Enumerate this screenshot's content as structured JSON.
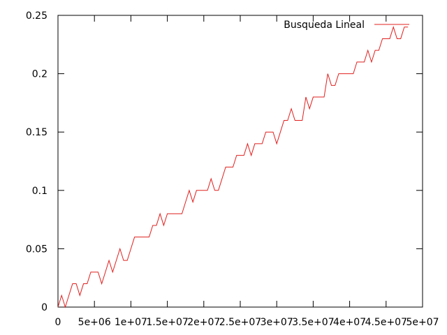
{
  "chart_data": {
    "type": "line",
    "title": "",
    "xlabel": "",
    "ylabel": "",
    "xlim": [
      0,
      50000000
    ],
    "ylim": [
      0,
      0.25
    ],
    "x_ticks": [
      {
        "value": 0,
        "label": "0"
      },
      {
        "value": 5000000,
        "label": "5e+06"
      },
      {
        "value": 10000000,
        "label": "1e+07"
      },
      {
        "value": 15000000,
        "label": "1.5e+07"
      },
      {
        "value": 20000000,
        "label": "2e+07"
      },
      {
        "value": 25000000,
        "label": "2.5e+07"
      },
      {
        "value": 30000000,
        "label": "3e+07"
      },
      {
        "value": 35000000,
        "label": "3.5e+07"
      },
      {
        "value": 40000000,
        "label": "4e+07"
      },
      {
        "value": 45000000,
        "label": "4.5e+07"
      },
      {
        "value": 50000000,
        "label": "5e+07"
      }
    ],
    "y_ticks": [
      {
        "value": 0,
        "label": "0"
      },
      {
        "value": 0.05,
        "label": "0.05"
      },
      {
        "value": 0.1,
        "label": "0.1"
      },
      {
        "value": 0.15,
        "label": "0.15"
      },
      {
        "value": 0.2,
        "label": "0.2"
      },
      {
        "value": 0.25,
        "label": "0.25"
      }
    ],
    "grid": false,
    "legend_position": "top-right",
    "series": [
      {
        "name": "Busqueda Lineal",
        "color": "#e0201f",
        "x": [
          0,
          500000,
          1000000,
          1500000,
          2000000,
          2500000,
          3000000,
          3500000,
          4000000,
          4500000,
          5000000,
          5500000,
          6000000,
          6500000,
          7000000,
          7500000,
          8000000,
          8500000,
          9000000,
          9500000,
          10000000,
          10500000,
          11000000,
          11500000,
          12000000,
          12500000,
          13000000,
          13500000,
          14000000,
          14500000,
          15000000,
          15500000,
          16000000,
          16500000,
          17000000,
          17500000,
          18000000,
          18500000,
          19000000,
          19500000,
          20000000,
          20500000,
          21000000,
          21500000,
          22000000,
          22500000,
          23000000,
          23500000,
          24000000,
          24500000,
          25000000,
          25500000,
          26000000,
          26500000,
          27000000,
          27500000,
          28000000,
          28500000,
          29000000,
          29500000,
          30000000,
          30500000,
          31000000,
          31500000,
          32000000,
          32500000,
          33000000,
          33500000,
          34000000,
          34500000,
          35000000,
          35500000,
          36000000,
          36500000,
          37000000,
          37500000,
          38000000,
          38500000,
          39000000,
          39500000,
          40000000,
          40500000,
          41000000,
          41500000,
          42000000,
          42500000,
          43000000,
          43500000,
          44000000,
          44500000,
          45000000,
          45500000,
          46000000,
          46500000,
          47000000,
          47500000,
          48000000
        ],
        "values": [
          0,
          0.01,
          0,
          0.01,
          0.02,
          0.02,
          0.01,
          0.02,
          0.02,
          0.03,
          0.03,
          0.03,
          0.02,
          0.03,
          0.04,
          0.03,
          0.04,
          0.05,
          0.04,
          0.04,
          0.05,
          0.06,
          0.06,
          0.06,
          0.06,
          0.06,
          0.07,
          0.07,
          0.08,
          0.07,
          0.08,
          0.08,
          0.08,
          0.08,
          0.08,
          0.09,
          0.1,
          0.09,
          0.1,
          0.1,
          0.1,
          0.1,
          0.11,
          0.1,
          0.1,
          0.11,
          0.12,
          0.12,
          0.12,
          0.13,
          0.13,
          0.13,
          0.14,
          0.13,
          0.14,
          0.14,
          0.14,
          0.15,
          0.15,
          0.15,
          0.14,
          0.15,
          0.16,
          0.16,
          0.17,
          0.16,
          0.16,
          0.16,
          0.18,
          0.17,
          0.18,
          0.18,
          0.18,
          0.18,
          0.2,
          0.19,
          0.19,
          0.2,
          0.2,
          0.2,
          0.2,
          0.2,
          0.21,
          0.21,
          0.21,
          0.22,
          0.21,
          0.22,
          0.22,
          0.23,
          0.23,
          0.23,
          0.24,
          0.23,
          0.23,
          0.24,
          0.24
        ]
      }
    ]
  }
}
